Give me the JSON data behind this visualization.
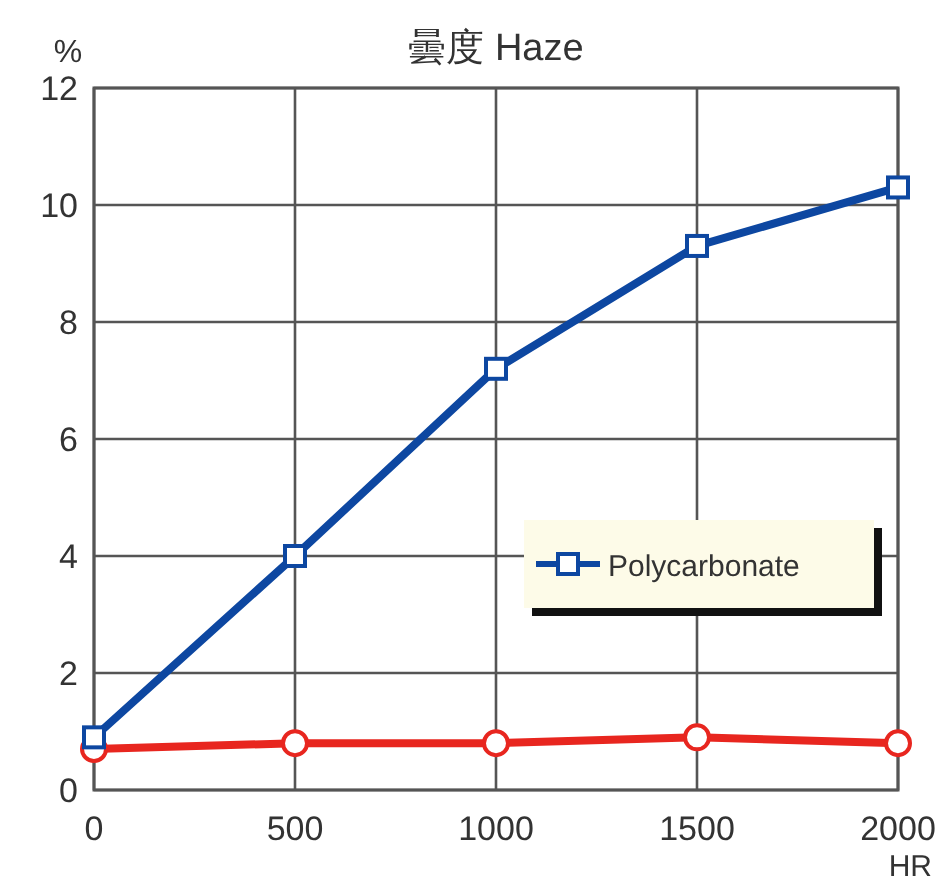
{
  "chart_data": {
    "type": "line",
    "title": "曇度  Haze",
    "ylabel": "%",
    "xlabel": "HR",
    "x": [
      0,
      500,
      1000,
      1500,
      2000
    ],
    "series": [
      {
        "name": "Polycarbonate",
        "color": "#0d47a1",
        "marker": "square",
        "values": [
          0.9,
          4.0,
          7.2,
          9.3,
          10.3
        ]
      },
      {
        "color": "#e8261f",
        "marker": "circle",
        "values": [
          0.7,
          0.8,
          0.8,
          0.9,
          0.8
        ]
      }
    ],
    "xlim": [
      0,
      2000
    ],
    "xticks": [
      0,
      500,
      1000,
      1500,
      2000
    ],
    "ylim": [
      0,
      12
    ],
    "yticks": [
      0,
      2,
      4,
      6,
      8,
      10,
      12
    ],
    "grid": true,
    "legend": "right",
    "line_style": "solid"
  }
}
